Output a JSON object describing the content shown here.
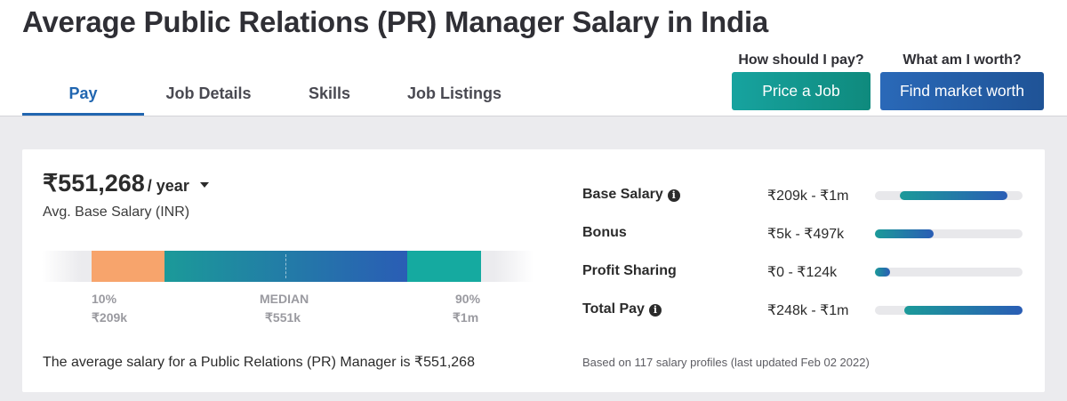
{
  "page": {
    "title": "Average Public Relations (PR) Manager Salary in India"
  },
  "tabs": [
    {
      "label": "Pay",
      "active": true
    },
    {
      "label": "Job Details",
      "active": false
    },
    {
      "label": "Skills",
      "active": false
    },
    {
      "label": "Job Listings",
      "active": false
    }
  ],
  "cta": {
    "price": {
      "question": "How should I pay?",
      "button": "Price a Job"
    },
    "worth": {
      "question": "What am I worth?",
      "button": "Find market worth"
    }
  },
  "salary": {
    "amount": "₹551,268",
    "unit": "/ year",
    "subtitle": "Avg. Base Salary (INR)",
    "percentiles": {
      "low_label": "10%",
      "low_value": "₹209k",
      "median_label": "MEDIAN",
      "median_value": "₹551k",
      "high_label": "90%",
      "high_value": "₹1m"
    },
    "summary": "The average salary for a Public Relations (PR) Manager is ₹551,268"
  },
  "pay_breakdown": [
    {
      "label": "Base Salary",
      "info": true,
      "range": "₹209k - ₹1m",
      "fill_start": 0.17,
      "fill_end": 0.9
    },
    {
      "label": "Bonus",
      "info": false,
      "range": "₹5k - ₹497k",
      "fill_start": 0.0,
      "fill_end": 0.4
    },
    {
      "label": "Profit Sharing",
      "info": false,
      "range": "₹0 - ₹124k",
      "fill_start": 0.0,
      "fill_end": 0.1
    },
    {
      "label": "Total Pay",
      "info": true,
      "range": "₹248k - ₹1m",
      "fill_start": 0.2,
      "fill_end": 1.0
    }
  ],
  "footnote": "Based on 117 salary profiles (last updated Feb 02 2022)",
  "colors": {
    "accent_blue": "#2166b0",
    "teal": "#17a39f",
    "orange": "#f7a46c",
    "background_gray": "#ebebee"
  },
  "icons": {
    "info": "info-icon",
    "dropdown": "caret-down-icon"
  }
}
